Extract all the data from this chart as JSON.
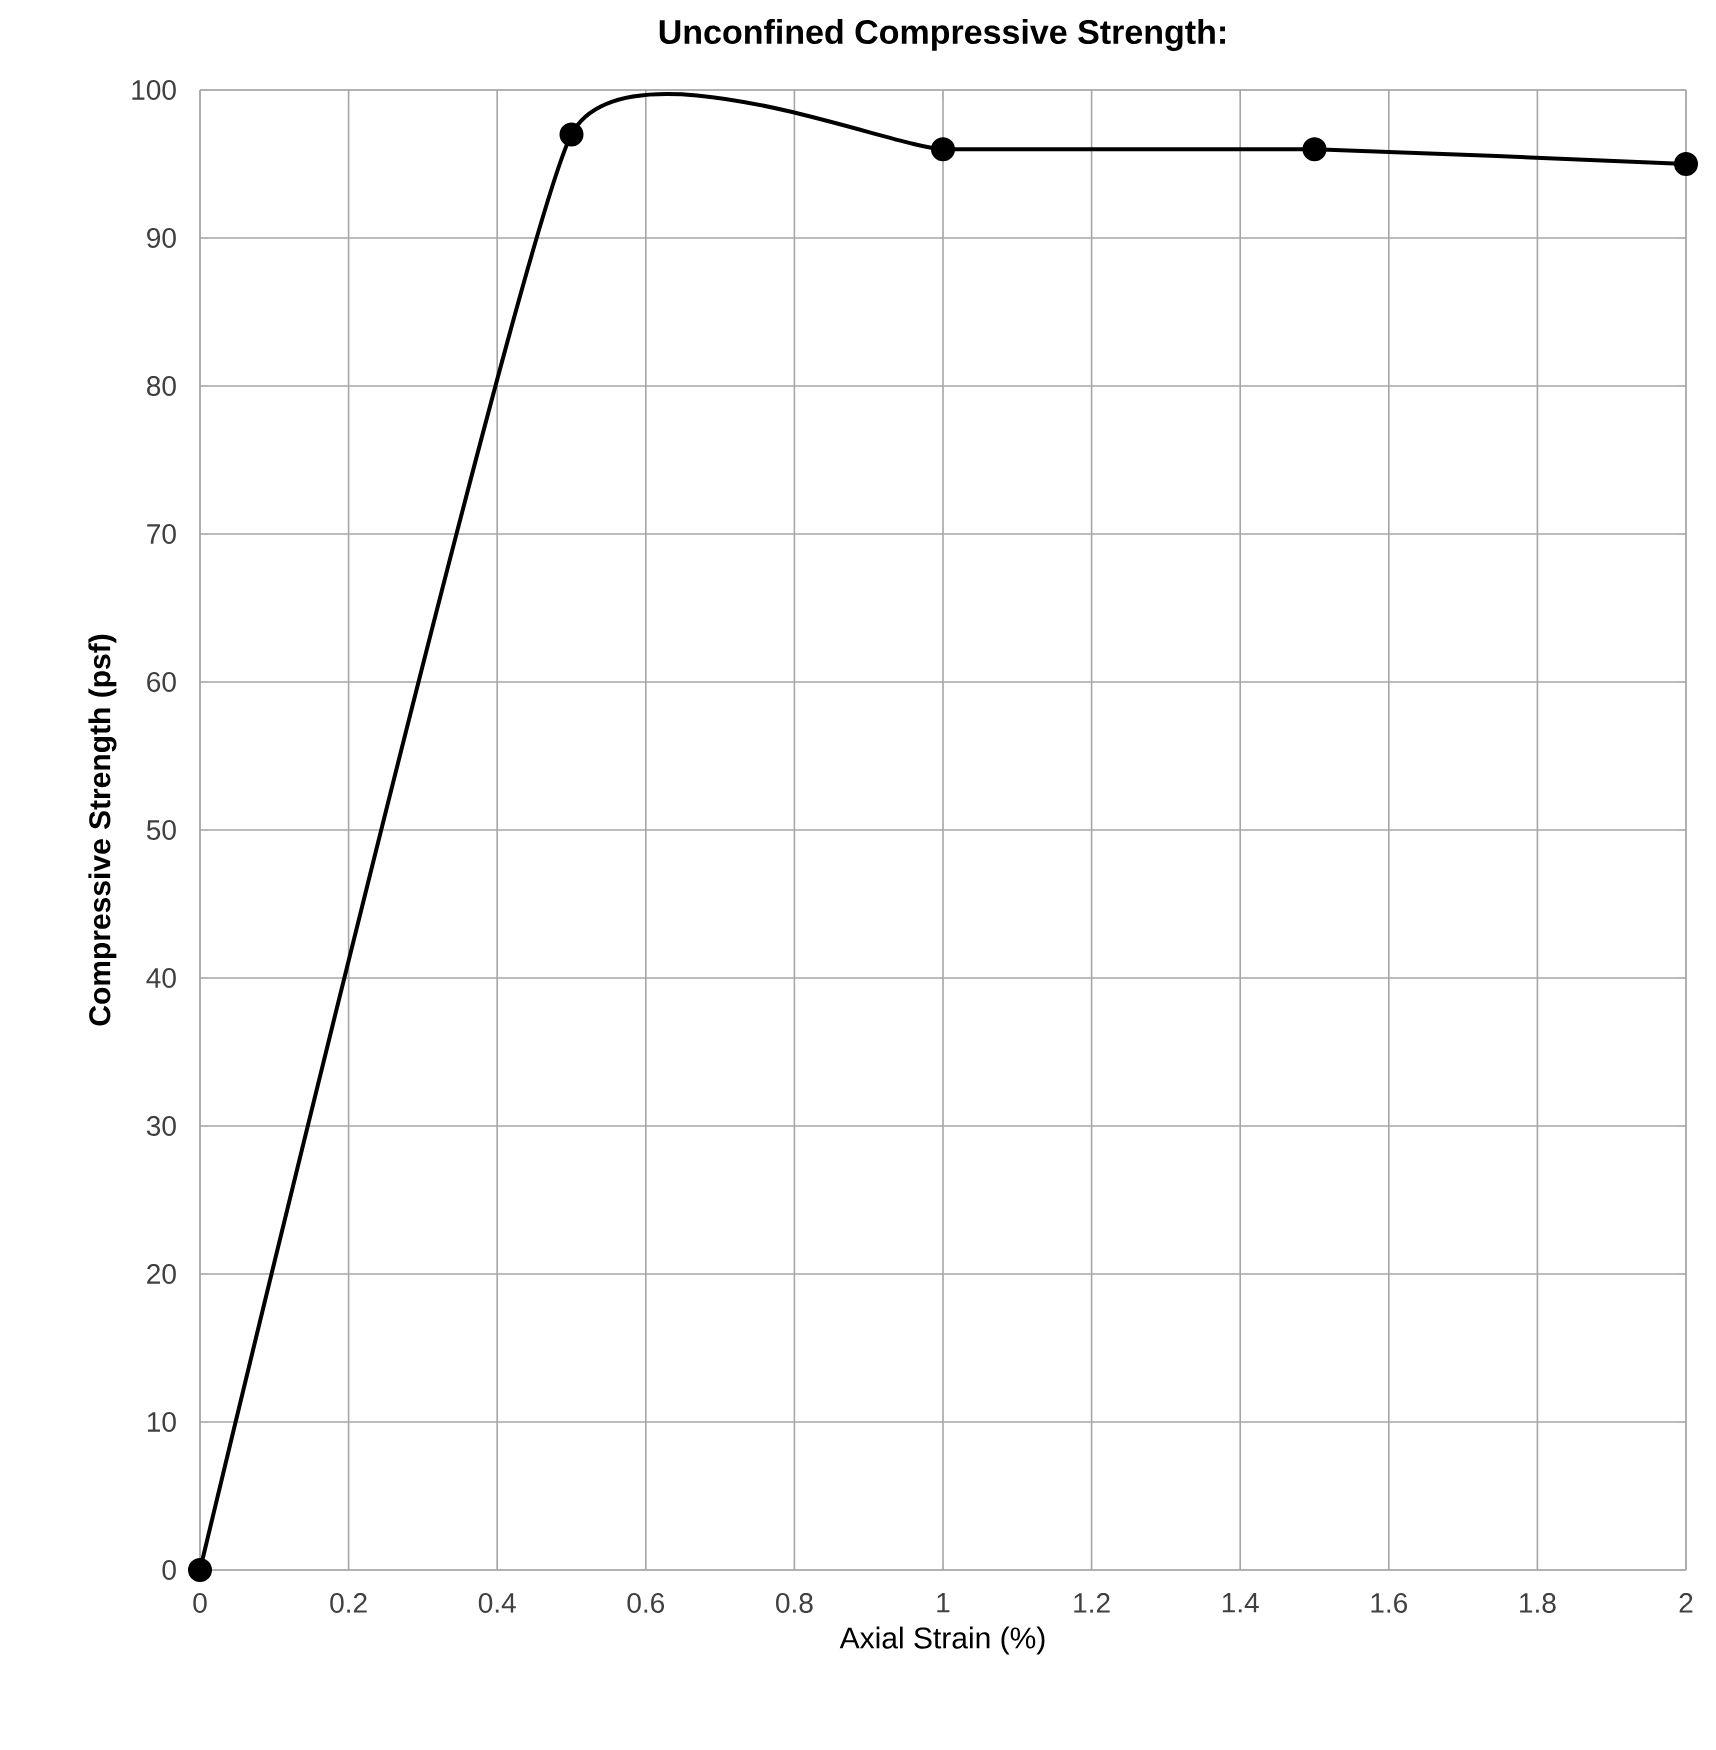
{
  "chart_data": {
    "type": "line",
    "title": "Unconfined Compressive Strength:",
    "xlabel": "Axial Strain (%)",
    "ylabel": "Compressive Strength (psf)",
    "x": [
      0,
      0.5,
      1,
      1.5,
      2
    ],
    "series": [
      {
        "color": "#000000",
        "values": [
          0,
          97,
          96,
          96,
          95
        ]
      }
    ],
    "xlim": [
      0,
      2
    ],
    "ylim": [
      0,
      100
    ],
    "xticks": [
      0,
      0.2,
      0.4,
      0.6,
      0.8,
      1,
      1.2,
      1.4,
      1.6,
      1.8,
      2
    ],
    "yticks": [
      0,
      10,
      20,
      30,
      40,
      50,
      60,
      70,
      80,
      90,
      100
    ],
    "grid": true,
    "marker": "circle",
    "line_style": "solid"
  }
}
